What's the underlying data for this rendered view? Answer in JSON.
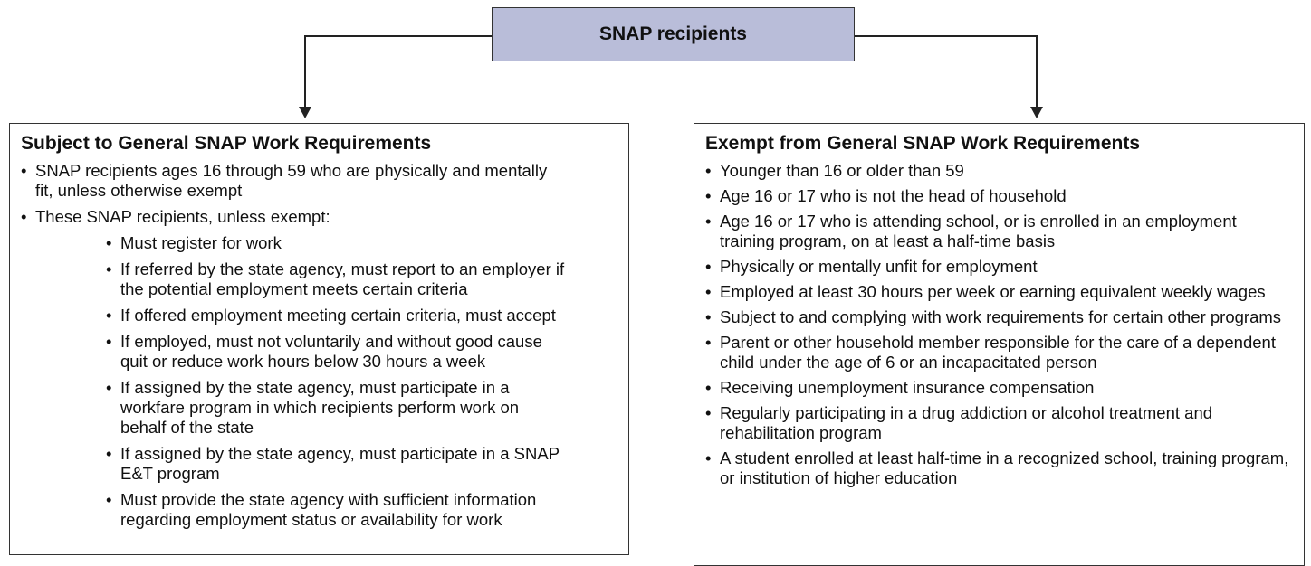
{
  "root": {
    "label": "SNAP recipients"
  },
  "subject": {
    "heading": "Subject to General SNAP Work Requirements",
    "items": [
      {
        "text": "SNAP recipients ages 16 through 59 who are physically and mentally fit, unless otherwise exempt"
      },
      {
        "text": "These SNAP recipients, unless exempt:",
        "subitems": [
          "Must register for work",
          "If referred by the state agency, must report to an employer if the potential employment meets certain criteria",
          "If offered employment meeting certain criteria, must accept",
          "If employed, must not voluntarily and without good cause quit or reduce work hours below 30 hours a week",
          "If assigned by the state agency, must participate in a workfare program in which recipients perform work on behalf of the state",
          "If assigned by the state agency, must participate in a SNAP E&T program",
          "Must provide the state agency with sufficient information regarding employment status or availability for work"
        ]
      }
    ]
  },
  "exempt": {
    "heading": "Exempt from General SNAP Work Requirements",
    "items": [
      "Younger than 16 or older than 59",
      "Age 16 or 17 who is not the head of household",
      "Age 16 or 17 who is attending school, or is enrolled in an employment training program, on at least a half-time basis",
      "Physically or mentally unfit for employment",
      "Employed at least 30 hours per week or earning equivalent weekly wages",
      "Subject to and complying with work requirements for certain other programs",
      "Parent or other household member responsible for the care of a dependent child under the age of 6 or an incapacitated person",
      "Receiving unemployment insurance compensation",
      "Regularly participating in a drug addiction or alcohol treatment and rehabilitation program",
      "A student enrolled at least half-time in a recognized school, training program, or institution of higher education"
    ]
  }
}
